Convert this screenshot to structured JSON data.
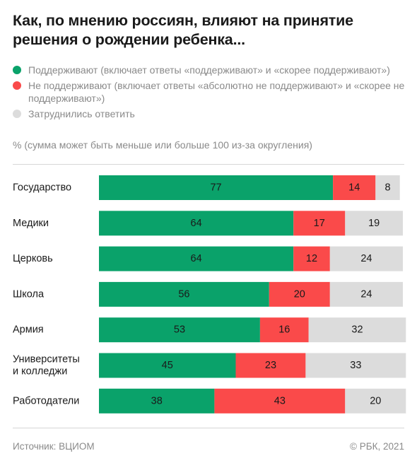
{
  "title": "Как, по мнению россиян, влияют на принятие решения о рождении ребенка...",
  "legend": [
    {
      "label": "Поддерживают (включает ответы «поддерживают» и «скорее поддерживают»)",
      "color": "#0aa26a"
    },
    {
      "label": "Не поддерживают (включает ответы «абсолютно не поддерживают» и «скорее не поддерживают»)",
      "color": "#fa4a4a"
    },
    {
      "label": "Затруднились ответить",
      "color": "#dcdcdc"
    }
  ],
  "note": "% (сумма может быть меньше или больше 100 из-за округления)",
  "chart_data": {
    "type": "bar",
    "orientation": "horizontal",
    "stacked": true,
    "categories": [
      "Государство",
      "Медики",
      "Церковь",
      "Школа",
      "Армия",
      "Университеты и колледжи",
      "Работодатели"
    ],
    "category_lines": [
      [
        "Государство"
      ],
      [
        "Медики"
      ],
      [
        "Церковь"
      ],
      [
        "Школа"
      ],
      [
        "Армия"
      ],
      [
        "Университеты",
        "и колледжи"
      ],
      [
        "Работодатели"
      ]
    ],
    "series": [
      {
        "name": "Поддерживают",
        "color": "#0aa26a",
        "values": [
          77,
          64,
          64,
          56,
          53,
          45,
          38
        ]
      },
      {
        "name": "Не поддерживают",
        "color": "#fa4a4a",
        "values": [
          14,
          17,
          12,
          20,
          16,
          23,
          43
        ]
      },
      {
        "name": "Затруднились ответить",
        "color": "#dcdcdc",
        "values": [
          8,
          19,
          24,
          24,
          32,
          33,
          20
        ]
      }
    ],
    "unit": "%",
    "xlim": [
      0,
      100
    ]
  },
  "footer": {
    "source": "Источник:  ВЦИОМ",
    "copyright": "© РБК, 2021"
  }
}
